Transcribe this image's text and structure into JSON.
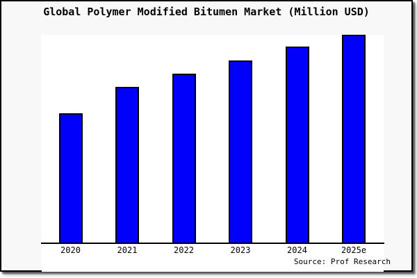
{
  "window": {
    "background_color": "#f8f8f8",
    "plot_background_color": "#ffffff",
    "border_color": "#000000"
  },
  "chart_data": {
    "type": "bar",
    "title": "Global Polymer Modified Bitumen Market (Million USD)",
    "categories": [
      "2020",
      "2021",
      "2022",
      "2023",
      "2024",
      "2025e"
    ],
    "values_percent_of_max": [
      62.3,
      75.0,
      81.3,
      87.7,
      94.2,
      100.0
    ],
    "y_axis_tick_labels": [],
    "grid": false,
    "legend_position": "none",
    "bar_color": "#0000fb",
    "bar_border_color": "#000000",
    "axis_color": "#000000",
    "source": "Source: Prof Research"
  }
}
